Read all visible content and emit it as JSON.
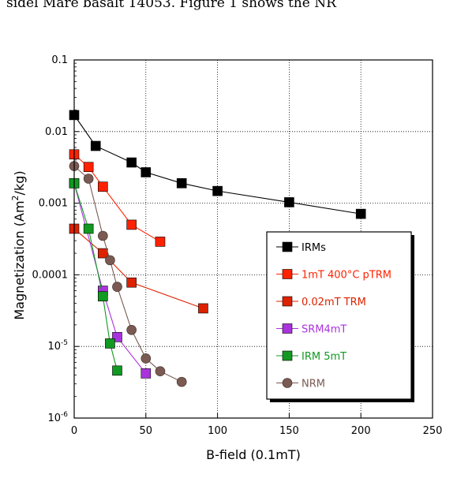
{
  "page": {
    "caption_fragment": "sidel Mare basalt 14053. Figure 1 shows the NR"
  },
  "chart_data": {
    "type": "scatter",
    "title": "",
    "xlabel": "B-field (0.1mT)",
    "ylabel_parts": [
      "Magnetization (Am",
      "2",
      "/kg)"
    ],
    "xlim": [
      0,
      250
    ],
    "ylim": [
      1e-06,
      0.1
    ],
    "yscale": "log",
    "grid": true,
    "legend_position": "bottom-right",
    "x_ticks": [
      {
        "value": 0,
        "label": "0"
      },
      {
        "value": 50,
        "label": "50"
      },
      {
        "value": 100,
        "label": "100"
      },
      {
        "value": 150,
        "label": "150"
      },
      {
        "value": 200,
        "label": "200"
      },
      {
        "value": 250,
        "label": "250"
      }
    ],
    "y_ticks": [
      {
        "value": 0.1,
        "label": "0.1"
      },
      {
        "value": 0.01,
        "label": "0.01"
      },
      {
        "value": 0.001,
        "label": "0.001"
      },
      {
        "value": 0.0001,
        "label": "0.0001"
      },
      {
        "value": 1e-05,
        "base": "10",
        "exp": "-5"
      },
      {
        "value": 1e-06,
        "base": "10",
        "exp": "-6"
      }
    ],
    "series": [
      {
        "name": "IRMs",
        "color": "#000000",
        "marker": "square",
        "x": [
          0,
          15,
          40,
          50,
          75,
          100,
          150,
          200
        ],
        "y": [
          0.017,
          0.0063,
          0.0037,
          0.0027,
          0.0019,
          0.00148,
          0.00103,
          0.00071
        ]
      },
      {
        "name": "1mT 400°C pTRM",
        "color": "#ff2200",
        "marker": "square",
        "x": [
          0,
          10,
          20,
          40,
          60
        ],
        "y": [
          0.0048,
          0.0032,
          0.0017,
          0.0005,
          0.00029
        ]
      },
      {
        "name": "0.02mT TRM",
        "color": "#dd2200",
        "marker": "square",
        "x": [
          0,
          20,
          40,
          90
        ],
        "y": [
          0.00044,
          0.0002,
          7.8e-05,
          3.4e-05
        ]
      },
      {
        "name": "SRM4mT",
        "color": "#aa33dd",
        "marker": "square",
        "x": [
          0,
          20,
          30,
          50
        ],
        "y": [
          0.0019,
          6e-05,
          1.35e-05,
          4.2e-06
        ]
      },
      {
        "name": "IRM 5mT",
        "color": "#119922",
        "marker": "square",
        "x": [
          0,
          10,
          20,
          25,
          30
        ],
        "y": [
          0.0019,
          0.00044,
          5e-05,
          1.1e-05,
          4.6e-06
        ]
      },
      {
        "name": "NRM",
        "color": "#7a5a52",
        "marker": "circle",
        "x": [
          0,
          10,
          20,
          25,
          30,
          40,
          50,
          60,
          75
        ],
        "y": [
          0.0033,
          0.0022,
          0.00035,
          0.00016,
          6.8e-05,
          1.7e-05,
          6.8e-06,
          4.5e-06,
          3.2e-06
        ]
      }
    ]
  }
}
